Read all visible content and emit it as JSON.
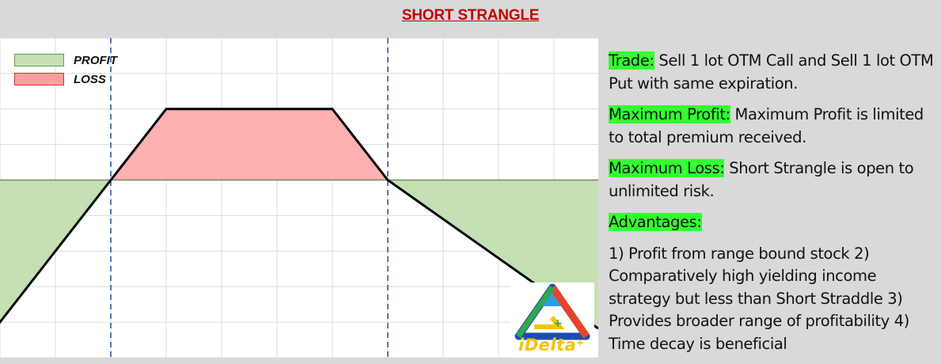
{
  "title": "SHORT STRANGLE",
  "legend": {
    "profit": "PROFIT",
    "loss": "LOSS"
  },
  "colors": {
    "profit_fill": "#c5e0b4",
    "loss_fill": "#ffb0b0",
    "payoff_line": "#000000",
    "strike_line": "#4a6aa8",
    "highlight": "#33ff33",
    "title": "#c00000"
  },
  "chart_data": {
    "type": "line",
    "title": "",
    "xlabel": "",
    "ylabel": "",
    "x": [
      0,
      2,
      3,
      6,
      7,
      9
    ],
    "series": [
      {
        "values": [
          -4,
          0,
          2,
          2,
          0,
          -2.2
        ]
      }
    ],
    "strikes": [
      2,
      7
    ],
    "xlim": [
      0,
      10.8
    ],
    "ylim": [
      -5,
      4
    ],
    "grid": true,
    "legend_position": "top-left"
  },
  "logo": {
    "text": "iDelta",
    "mark": "+"
  },
  "sections": [
    {
      "label": "Trade:",
      "text": " Sell 1 lot OTM Call and Sell 1 lot OTM Put with same expiration."
    },
    {
      "label": "Maximum Profit:",
      "text": " Maximum Profit is limited to total premium received."
    },
    {
      "label": "Maximum Loss:",
      "text": " Short Strangle is open to unlimited risk."
    },
    {
      "label": "Advantages:",
      "text": ""
    },
    {
      "label": "",
      "text": "1) Profit from range bound stock 2) Comparatively high yielding income strategy but less than Short Straddle 3) Provides broader range of profitability 4) Time decay is beneficial"
    }
  ]
}
